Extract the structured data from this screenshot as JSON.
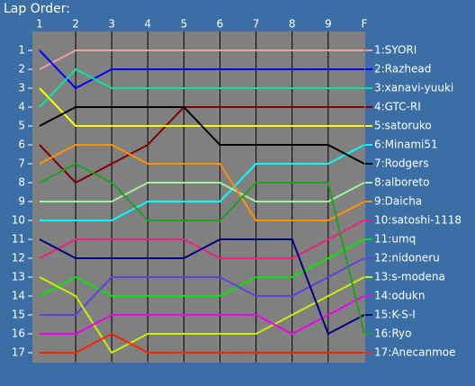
{
  "chart_data": {
    "type": "line",
    "title": "Lap Order:",
    "categories": [
      "1",
      "2",
      "3",
      "4",
      "5",
      "6",
      "7",
      "8",
      "9",
      "F"
    ],
    "ylim": [
      0,
      17.5
    ],
    "y_reversed": true,
    "yticks": [
      1,
      2,
      3,
      4,
      5,
      6,
      7,
      8,
      9,
      10,
      11,
      12,
      13,
      14,
      15,
      16,
      17
    ],
    "grid": true,
    "series": [
      {
        "name": "1:SYORI",
        "color": "#f0a0a0",
        "values": [
          2,
          1,
          1,
          1,
          1,
          1,
          1,
          1,
          1,
          1
        ]
      },
      {
        "name": "2:Razhead",
        "color": "#0000ff",
        "values": [
          1,
          3,
          2,
          2,
          2,
          2,
          2,
          2,
          2,
          2
        ]
      },
      {
        "name": "3:xanavi-yuuki",
        "color": "#00e8a0",
        "values": [
          4,
          2,
          3,
          3,
          3,
          3,
          3,
          3,
          3,
          3
        ]
      },
      {
        "name": "4:GTC-RI",
        "color": "#800000",
        "values": [
          6,
          8,
          7,
          6,
          4,
          4,
          4,
          4,
          4,
          4
        ]
      },
      {
        "name": "5:satoruko",
        "color": "#ffff00",
        "values": [
          3,
          5,
          5,
          5,
          5,
          5,
          5,
          5,
          5,
          5
        ]
      },
      {
        "name": "6:Minami51",
        "color": "#00ffff",
        "values": [
          10,
          10,
          10,
          9,
          9,
          9,
          7,
          7,
          7,
          6
        ]
      },
      {
        "name": "7:Rodgers",
        "color": "#000000",
        "values": [
          5,
          4,
          4,
          4,
          4,
          6,
          6,
          6,
          6,
          7
        ]
      },
      {
        "name": "8:alboreto",
        "color": "#a0f0a0",
        "values": [
          9,
          9,
          9,
          8,
          8,
          8,
          9,
          9,
          9,
          8
        ]
      },
      {
        "name": "9:Daicha",
        "color": "#ff9000",
        "values": [
          7,
          6,
          6,
          7,
          7,
          7,
          10,
          10,
          10,
          9
        ]
      },
      {
        "name": "10:satoshi-1118",
        "color": "#f02080",
        "values": [
          12,
          11,
          11,
          11,
          11,
          12,
          12,
          12,
          11,
          10
        ]
      },
      {
        "name": "11:umq",
        "color": "#00e800",
        "values": [
          14,
          13,
          14,
          14,
          14,
          14,
          13,
          13,
          12,
          11
        ]
      },
      {
        "name": "12:nidoneru",
        "color": "#6040e0",
        "values": [
          15,
          15,
          13,
          13,
          13,
          13,
          14,
          14,
          13,
          12
        ]
      },
      {
        "name": "13:s-modena",
        "color": "#c8f000",
        "values": [
          13,
          14,
          17,
          16,
          16,
          16,
          16,
          15,
          14,
          13
        ]
      },
      {
        "name": "14:odukn",
        "color": "#f000f0",
        "values": [
          16,
          16,
          15,
          15,
          15,
          15,
          15,
          16,
          15,
          14
        ]
      },
      {
        "name": "15:K-S-I",
        "color": "#000080",
        "values": [
          11,
          12,
          12,
          12,
          12,
          11,
          11,
          11,
          16,
          15
        ]
      },
      {
        "name": "16:Ryo",
        "color": "#20a020",
        "values": [
          8,
          7,
          8,
          10,
          10,
          10,
          8,
          8,
          8,
          16
        ]
      },
      {
        "name": "17:Anecanmoe",
        "color": "#ff2000",
        "values": [
          17,
          17,
          16,
          17,
          17,
          17,
          17,
          17,
          17,
          17
        ]
      }
    ]
  }
}
